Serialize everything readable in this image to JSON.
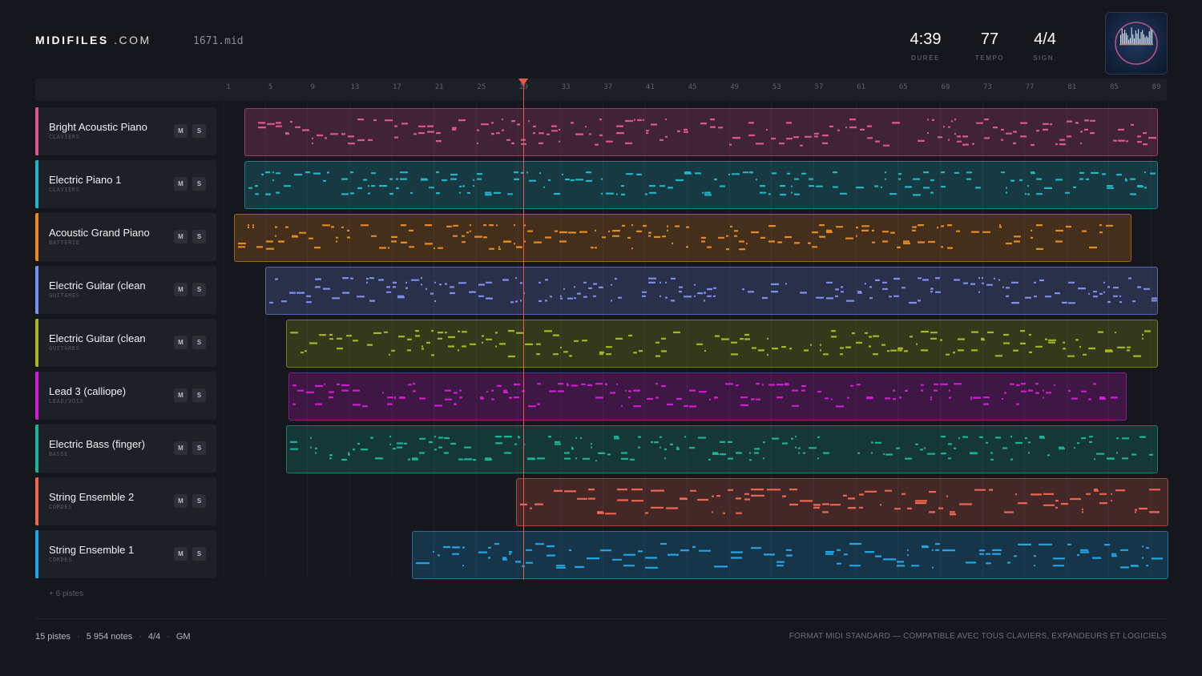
{
  "brand": {
    "name": "MIDIFILES",
    "domain": ".COM"
  },
  "file": {
    "name": "1671.mid"
  },
  "stats": [
    {
      "value": "4:39",
      "label": "DURÉE"
    },
    {
      "value": "77",
      "label": "TEMPO"
    },
    {
      "value": "4/4",
      "label": "SIGN."
    }
  ],
  "ruler": {
    "ticks": [
      "1",
      "5",
      "9",
      "13",
      "17",
      "21",
      "25",
      "29",
      "33",
      "37",
      "41",
      "45",
      "49",
      "53",
      "57",
      "61",
      "65",
      "69",
      "73",
      "77",
      "81",
      "85",
      "89"
    ]
  },
  "playhead_bar": 29,
  "tracks": [
    {
      "name": "Bright Acoustic Piano",
      "category": "CLAVIERS",
      "color": "#e0568c",
      "start_bar": 2.5,
      "end_bar": 89
    },
    {
      "name": "Electric Piano 1",
      "category": "CLAVIERS",
      "color": "#1fb6c9",
      "start_bar": 2.5,
      "end_bar": 89
    },
    {
      "name": "Acoustic Grand Piano",
      "category": "BATTERIE",
      "color": "#e88a1c",
      "start_bar": 1.5,
      "end_bar": 86.5
    },
    {
      "name": "Electric Guitar (clean",
      "category": "GUITARES",
      "color": "#7b8ff0",
      "start_bar": 4.5,
      "end_bar": 89
    },
    {
      "name": "Electric Guitar (clean",
      "category": "GUITARES",
      "color": "#a6b81c",
      "start_bar": 6.5,
      "end_bar": 89
    },
    {
      "name": "Lead 3 (calliope)",
      "category": "LEAD/VOIX",
      "color": "#d21cd4",
      "start_bar": 6.7,
      "end_bar": 86
    },
    {
      "name": "Electric Bass (finger)",
      "category": "BASSE",
      "color": "#17b39a",
      "start_bar": 6.5,
      "end_bar": 89
    },
    {
      "name": "String Ensemble 2",
      "category": "CORDES",
      "color": "#ee6650",
      "start_bar": 28.3,
      "end_bar": 90.2
    },
    {
      "name": "String Ensemble 1",
      "category": "CORDES",
      "color": "#1fa6e8",
      "start_bar": 18.4,
      "end_bar": 90.2
    }
  ],
  "buttons": {
    "mute": "M",
    "solo": "S"
  },
  "more_tracks": "+ 6 pistes",
  "footer": {
    "tracks": "15 pistes",
    "notes": "5 954 notes",
    "signature": "4/4",
    "standard": "GM",
    "tagline": "FORMAT MIDI STANDARD — COMPATIBLE AVEC TOUS CLAVIERS, EXPANDEURS ET LOGICIELS"
  }
}
